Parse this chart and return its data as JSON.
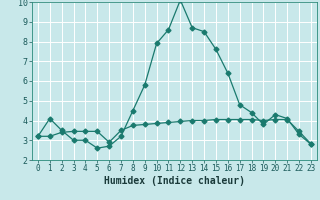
{
  "title": "",
  "xlabel": "Humidex (Indice chaleur)",
  "ylabel": "",
  "background_color": "#c8e8ea",
  "grid_color": "#ffffff",
  "line_color": "#1a7a6e",
  "xlim": [
    -0.5,
    23.5
  ],
  "ylim": [
    2,
    10
  ],
  "yticks": [
    2,
    3,
    4,
    5,
    6,
    7,
    8,
    9,
    10
  ],
  "xticks": [
    0,
    1,
    2,
    3,
    4,
    5,
    6,
    7,
    8,
    9,
    10,
    11,
    12,
    13,
    14,
    15,
    16,
    17,
    18,
    19,
    20,
    21,
    22,
    23
  ],
  "xtick_labels": [
    "0",
    "1",
    "2",
    "3",
    "4",
    "5",
    "6",
    "7",
    "8",
    "9",
    "10",
    "11",
    "12",
    "13",
    "14",
    "15",
    "16",
    "17",
    "18",
    "19",
    "20",
    "21",
    "22",
    "23"
  ],
  "series1_x": [
    0,
    1,
    2,
    3,
    4,
    5,
    6,
    7,
    8,
    9,
    10,
    11,
    12,
    13,
    14,
    15,
    16,
    17,
    18,
    19,
    20,
    21,
    22,
    23
  ],
  "series1_y": [
    3.2,
    4.1,
    3.5,
    3.0,
    3.0,
    2.6,
    2.7,
    3.2,
    4.5,
    5.8,
    7.9,
    8.6,
    10.1,
    8.7,
    8.5,
    7.6,
    6.4,
    4.8,
    4.4,
    3.8,
    4.3,
    4.1,
    3.3,
    2.8
  ],
  "series2_x": [
    0,
    1,
    2,
    3,
    4,
    5,
    6,
    7,
    8,
    9,
    10,
    11,
    12,
    13,
    14,
    15,
    16,
    17,
    18,
    19,
    20,
    21,
    22,
    23
  ],
  "series2_y": [
    3.2,
    3.2,
    3.4,
    3.45,
    3.45,
    3.45,
    2.9,
    3.5,
    3.75,
    3.8,
    3.85,
    3.9,
    3.95,
    4.0,
    4.0,
    4.05,
    4.05,
    4.05,
    4.05,
    4.0,
    4.05,
    4.05,
    3.45,
    2.82
  ],
  "marker_size": 2.5,
  "linewidth": 0.9,
  "tick_fontsize": 5.5,
  "xlabel_fontsize": 7
}
